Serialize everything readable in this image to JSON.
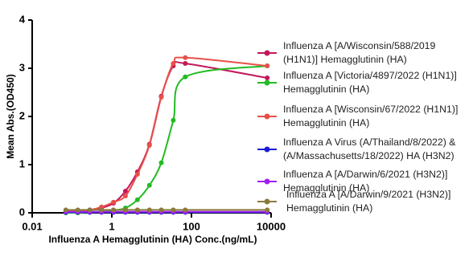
{
  "chart_data": {
    "type": "scatter",
    "x_label": "Influenza A  Hemagglutinin (HA) Conc.(ng/mL)",
    "y_label": "Mean Abs.(OD450)",
    "x": [
      0.07,
      0.14,
      0.28,
      0.55,
      1.1,
      2.2,
      4.4,
      8.8,
      17.5,
      35,
      70,
      8000
    ],
    "xlim": [
      0.01,
      10000
    ],
    "xticks": [
      0.01,
      1,
      100,
      10000
    ],
    "xscale": "log",
    "ylim": [
      0,
      4
    ],
    "yticks": [
      0,
      1,
      2,
      3,
      4
    ],
    "series": [
      {
        "name": "Influenza A [A/Wisconsin/588/2019 (H1N1)] Hemagglutinin (HA)",
        "color": "#c2185b",
        "values": [
          0.02,
          0.03,
          0.05,
          0.1,
          0.2,
          0.45,
          0.85,
          1.42,
          2.42,
          3.05,
          3.1,
          2.8
        ]
      },
      {
        "name": "Influenza A [Victoria/4897/2022 (H1N1)] Hemagglutinin (HA)",
        "color": "#22bb22",
        "values": [
          0.0,
          0.0,
          0.01,
          0.02,
          0.05,
          0.1,
          0.27,
          0.57,
          1.04,
          1.92,
          2.82,
          3.05
        ]
      },
      {
        "name": "Influenza A [Wisconsin/67/2022 (H1N1)] Hemagglutinin (HA)",
        "color": "#e8504a",
        "values": [
          0.03,
          0.04,
          0.06,
          0.12,
          0.22,
          0.35,
          0.8,
          1.4,
          2.4,
          3.1,
          3.22,
          3.05
        ]
      },
      {
        "name": "Influenza A Virus (A/Thailand/8/2022) & (A/Massachusetts/18/2022) HA (H3N2)",
        "color": "#1a1ad6",
        "values": [
          0.01,
          0.01,
          0.01,
          0.01,
          0.01,
          0.01,
          0.01,
          0.01,
          0.01,
          0.01,
          0.01,
          0.01
        ]
      },
      {
        "name": "Influenza A [A/Darwin/6/2021 (H3N2)] Hemagglutinin (HA)",
        "color": "#a020f0",
        "values": [
          0.02,
          0.02,
          0.02,
          0.02,
          0.02,
          0.02,
          0.02,
          0.02,
          0.02,
          0.02,
          0.02,
          0.02
        ]
      },
      {
        "name": "Influenza A [A/Darwin/9/2021 (H3N2)] Hemagglutinin (HA)",
        "color": "#8b7a3c",
        "values": [
          0.06,
          0.06,
          0.06,
          0.06,
          0.06,
          0.06,
          0.06,
          0.06,
          0.06,
          0.06,
          0.06,
          0.06
        ]
      }
    ]
  }
}
